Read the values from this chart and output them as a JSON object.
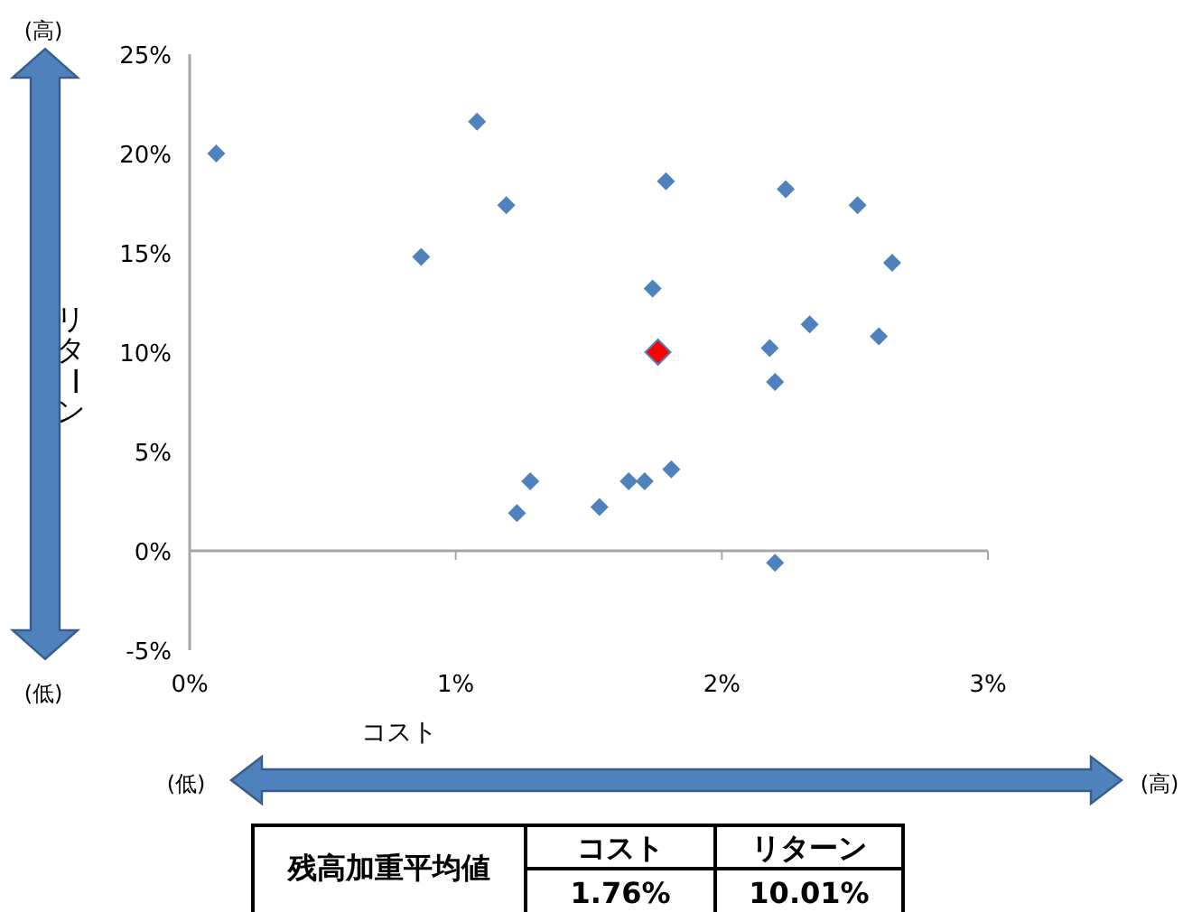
{
  "chart_data": {
    "type": "scatter",
    "xlabel": "コスト",
    "ylabel": "リターン",
    "xlim": [
      0,
      3
    ],
    "ylim": [
      -5,
      25
    ],
    "xticks": [
      {
        "value": 0,
        "label": "0%"
      },
      {
        "value": 1,
        "label": "1%"
      },
      {
        "value": 2,
        "label": "2%"
      },
      {
        "value": 3,
        "label": "3%"
      }
    ],
    "yticks": [
      {
        "value": -5,
        "label": "-5%"
      },
      {
        "value": 0,
        "label": "0%"
      },
      {
        "value": 5,
        "label": "5%"
      },
      {
        "value": 10,
        "label": "10%"
      },
      {
        "value": 15,
        "label": "15%"
      },
      {
        "value": 20,
        "label": "20%"
      },
      {
        "value": 25,
        "label": "25%"
      }
    ],
    "marker": "diamond",
    "series": [
      {
        "color": "#4f81bd",
        "x": [
          0.1,
          1.08,
          1.19,
          0.87,
          1.79,
          2.24,
          2.51,
          2.64,
          1.74,
          2.33,
          2.18,
          2.59,
          2.2,
          1.28,
          1.23,
          1.54,
          1.65,
          1.71,
          1.81,
          2.2
        ],
        "values": [
          20.0,
          21.6,
          17.4,
          14.8,
          18.6,
          18.2,
          17.4,
          14.5,
          13.2,
          11.4,
          10.2,
          10.8,
          8.5,
          3.5,
          1.9,
          2.2,
          3.5,
          3.5,
          4.1,
          -0.6
        ]
      },
      {
        "color": "#ff0000",
        "x": [
          1.76
        ],
        "values": [
          10.0
        ]
      }
    ],
    "annotations": [
      "(高)",
      "(低)",
      "(低)",
      "(高)",
      "残高加重平均値",
      "コスト",
      "リターン",
      "1.76%",
      "10.01%"
    ]
  }
}
